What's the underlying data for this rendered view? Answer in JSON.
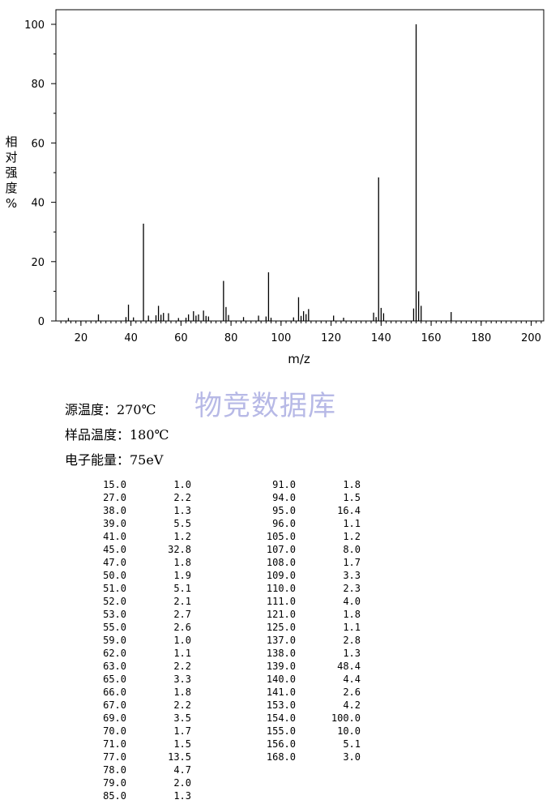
{
  "chart_data": {
    "type": "bar",
    "xlabel": "m/z",
    "ylabel": "相对强度%",
    "xlim": [
      10,
      205
    ],
    "ylim": [
      0,
      100
    ],
    "xticks": [
      "20",
      "40",
      "60",
      "80",
      "100",
      "120",
      "140",
      "160",
      "180",
      "200"
    ],
    "yticks": [
      "0",
      "20",
      "40",
      "60",
      "80",
      "100"
    ],
    "x": [
      15.0,
      27.0,
      38.0,
      39.0,
      41.0,
      45.0,
      47.0,
      50.0,
      51.0,
      52.0,
      53.0,
      55.0,
      59.0,
      62.0,
      63.0,
      65.0,
      66.0,
      67.0,
      69.0,
      70.0,
      71.0,
      77.0,
      78.0,
      79.0,
      85.0,
      91.0,
      94.0,
      95.0,
      96.0,
      105.0,
      107.0,
      108.0,
      109.0,
      110.0,
      111.0,
      121.0,
      125.0,
      137.0,
      138.0,
      139.0,
      140.0,
      141.0,
      153.0,
      154.0,
      155.0,
      156.0,
      168.0
    ],
    "values": [
      1.0,
      2.2,
      1.3,
      5.5,
      1.2,
      32.8,
      1.8,
      1.9,
      5.1,
      2.1,
      2.7,
      2.6,
      1.0,
      1.1,
      2.2,
      3.3,
      1.8,
      2.2,
      3.5,
      1.7,
      1.5,
      13.5,
      4.7,
      2.0,
      1.3,
      1.8,
      1.5,
      16.4,
      1.1,
      1.2,
      8.0,
      1.7,
      3.3,
      2.3,
      4.0,
      1.8,
      1.1,
      2.8,
      1.3,
      48.4,
      4.4,
      2.6,
      4.2,
      100.0,
      10.0,
      5.1,
      3.0
    ]
  },
  "ylabel_chars": [
    "相",
    "对",
    "强",
    "度",
    "%"
  ],
  "watermark": "物竞数据库",
  "conditions": {
    "source_temp": "源温度：270℃",
    "sample_temp": "样品温度：180℃",
    "electron_energy": "电子能量：75eV"
  },
  "table_left": [
    {
      "mz": "15.0",
      "ab": "1.0"
    },
    {
      "mz": "27.0",
      "ab": "2.2"
    },
    {
      "mz": "38.0",
      "ab": "1.3"
    },
    {
      "mz": "39.0",
      "ab": "5.5"
    },
    {
      "mz": "41.0",
      "ab": "1.2"
    },
    {
      "mz": "45.0",
      "ab": "32.8"
    },
    {
      "mz": "47.0",
      "ab": "1.8"
    },
    {
      "mz": "50.0",
      "ab": "1.9"
    },
    {
      "mz": "51.0",
      "ab": "5.1"
    },
    {
      "mz": "52.0",
      "ab": "2.1"
    },
    {
      "mz": "53.0",
      "ab": "2.7"
    },
    {
      "mz": "55.0",
      "ab": "2.6"
    },
    {
      "mz": "59.0",
      "ab": "1.0"
    },
    {
      "mz": "62.0",
      "ab": "1.1"
    },
    {
      "mz": "63.0",
      "ab": "2.2"
    },
    {
      "mz": "65.0",
      "ab": "3.3"
    },
    {
      "mz": "66.0",
      "ab": "1.8"
    },
    {
      "mz": "67.0",
      "ab": "2.2"
    },
    {
      "mz": "69.0",
      "ab": "3.5"
    },
    {
      "mz": "70.0",
      "ab": "1.7"
    },
    {
      "mz": "71.0",
      "ab": "1.5"
    },
    {
      "mz": "77.0",
      "ab": "13.5"
    },
    {
      "mz": "78.0",
      "ab": "4.7"
    },
    {
      "mz": "79.0",
      "ab": "2.0"
    },
    {
      "mz": "85.0",
      "ab": "1.3"
    }
  ],
  "table_right": [
    {
      "mz": "91.0",
      "ab": "1.8"
    },
    {
      "mz": "94.0",
      "ab": "1.5"
    },
    {
      "mz": "95.0",
      "ab": "16.4"
    },
    {
      "mz": "96.0",
      "ab": "1.1"
    },
    {
      "mz": "105.0",
      "ab": "1.2"
    },
    {
      "mz": "107.0",
      "ab": "8.0"
    },
    {
      "mz": "108.0",
      "ab": "1.7"
    },
    {
      "mz": "109.0",
      "ab": "3.3"
    },
    {
      "mz": "110.0",
      "ab": "2.3"
    },
    {
      "mz": "111.0",
      "ab": "4.0"
    },
    {
      "mz": "121.0",
      "ab": "1.8"
    },
    {
      "mz": "125.0",
      "ab": "1.1"
    },
    {
      "mz": "137.0",
      "ab": "2.8"
    },
    {
      "mz": "138.0",
      "ab": "1.3"
    },
    {
      "mz": "139.0",
      "ab": "48.4"
    },
    {
      "mz": "140.0",
      "ab": "4.4"
    },
    {
      "mz": "141.0",
      "ab": "2.6"
    },
    {
      "mz": "153.0",
      "ab": "4.2"
    },
    {
      "mz": "154.0",
      "ab": "100.0"
    },
    {
      "mz": "155.0",
      "ab": "10.0"
    },
    {
      "mz": "156.0",
      "ab": "5.1"
    },
    {
      "mz": "168.0",
      "ab": "3.0"
    }
  ]
}
